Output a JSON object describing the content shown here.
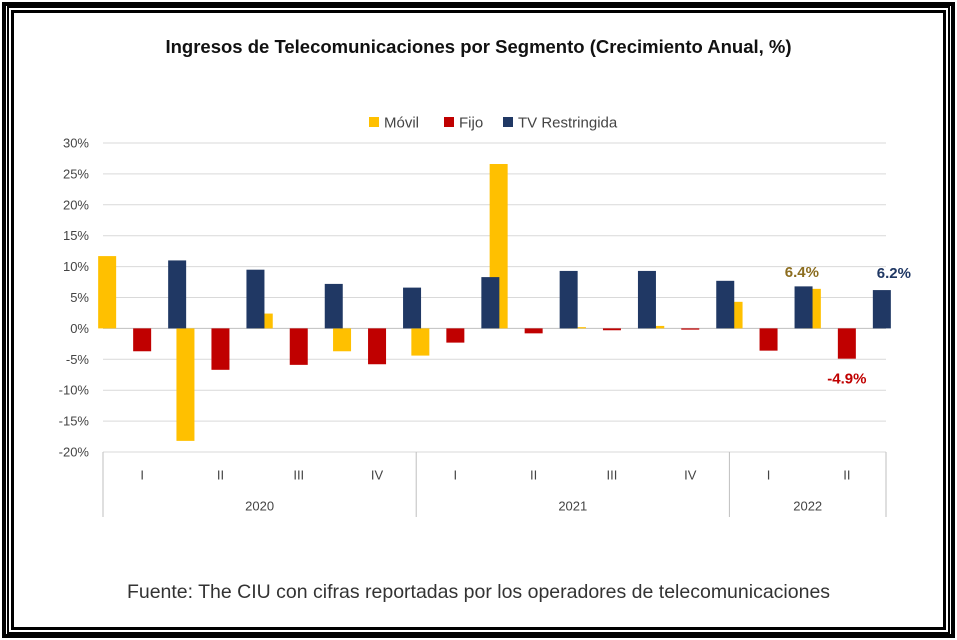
{
  "chart_data": {
    "type": "bar",
    "title": "Ingresos de Telecomunicaciones por Segmento (Crecimiento Anual, %)",
    "ylim": [
      -20,
      30
    ],
    "y_ticks": [
      "-20%",
      "-15%",
      "-10%",
      "-5%",
      "0%",
      "5%",
      "10%",
      "15%",
      "20%",
      "25%",
      "30%"
    ],
    "y_tick_values": [
      -20,
      -15,
      -10,
      -5,
      0,
      5,
      10,
      15,
      20,
      25,
      30
    ],
    "categories": [
      "I",
      "II",
      "III",
      "IV",
      "I",
      "II",
      "III",
      "IV",
      "I",
      "II"
    ],
    "groups": [
      {
        "label": "2020",
        "count": 4
      },
      {
        "label": "2021",
        "count": 4
      },
      {
        "label": "2022",
        "count": 2
      }
    ],
    "series": [
      {
        "name": "Móvil",
        "color": "#FFC000",
        "values": [
          11.7,
          -18.2,
          2.4,
          -3.7,
          -4.4,
          26.6,
          0.2,
          0.4,
          4.3,
          6.4
        ]
      },
      {
        "name": "Fijo",
        "color": "#C00000",
        "values": [
          -3.7,
          -6.7,
          -5.9,
          -5.8,
          -2.3,
          -0.8,
          -0.3,
          -0.2,
          -3.6,
          -4.9
        ]
      },
      {
        "name": "TV Restringida",
        "color": "#203864",
        "values": [
          11.0,
          9.5,
          7.2,
          6.6,
          8.3,
          9.3,
          9.3,
          7.7,
          6.8,
          6.2
        ]
      }
    ],
    "annotations": [
      {
        "text": "6.4%",
        "series": 0,
        "index": 9,
        "color": "#8C6D1F",
        "position": "above"
      },
      {
        "text": "6.2%",
        "series": 2,
        "index": 9,
        "color": "#203864",
        "position": "above"
      },
      {
        "text": "-4.9%",
        "series": 1,
        "index": 9,
        "color": "#C00000",
        "position": "below"
      }
    ],
    "legend_position": "top",
    "grid": true
  },
  "source": "Fuente: The CIU con cifras reportadas por los operadores de telecomunicaciones"
}
